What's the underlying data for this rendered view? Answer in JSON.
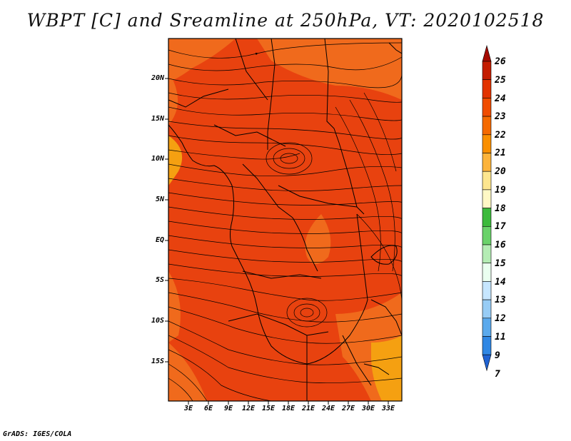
{
  "title": "WBPT [C] and Sreamline at 250hPa, VT: 2020102518",
  "credit": "GrADS: IGES/COLA",
  "map": {
    "lat_labels": [
      "20N",
      "15N",
      "10N",
      "5N",
      "EQ",
      "5S",
      "10S",
      "15S"
    ],
    "lon_labels": [
      "3E",
      "6E",
      "9E",
      "12E",
      "15E",
      "18E",
      "21E",
      "24E",
      "27E",
      "30E",
      "33E"
    ]
  },
  "colorbar": {
    "labels": [
      "26",
      "25",
      "24",
      "23",
      "22",
      "21",
      "20",
      "19",
      "18",
      "17",
      "16",
      "15",
      "14",
      "13",
      "12",
      "11",
      "9",
      "7"
    ],
    "colors": [
      "#a50a00",
      "#c41c00",
      "#e23300",
      "#f04c00",
      "#f56a00",
      "#fa8f00",
      "#fcb33b",
      "#fde68f",
      "#fff8c5",
      "#3cba3c",
      "#6ad26a",
      "#b4ecb4",
      "#eafff0",
      "#c6e6ff",
      "#97ccf5",
      "#5aa9ec",
      "#2f87e4",
      "#1f63d3"
    ]
  },
  "field": {
    "dominant_color": "#e8420f",
    "warm_patch_color": "#f06a1c",
    "streamline_color": "#000000"
  }
}
